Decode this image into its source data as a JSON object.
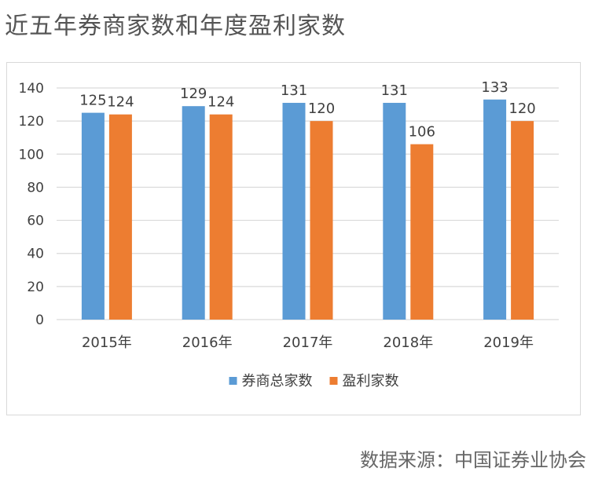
{
  "page": {
    "title": "近五年券商家数和年度盈利家数",
    "source": "数据来源：中国证券业协会"
  },
  "colors": {
    "series_1": "#5b9bd5",
    "series_2": "#ed7d31",
    "grid": "#d9d9d9",
    "text": "#404040"
  },
  "chart_data": {
    "type": "bar",
    "categories": [
      "2015年",
      "2016年",
      "2017年",
      "2018年",
      "2019年"
    ],
    "series": [
      {
        "name": "券商总家数",
        "values": [
          125,
          129,
          131,
          131,
          133
        ]
      },
      {
        "name": "盈利家数",
        "values": [
          124,
          124,
          120,
          106,
          120
        ]
      }
    ],
    "ylim": [
      0,
      140
    ],
    "yticks": [
      0,
      20,
      40,
      60,
      80,
      100,
      120,
      140
    ],
    "grid": true,
    "legend": "bottom",
    "data_labels": true
  }
}
